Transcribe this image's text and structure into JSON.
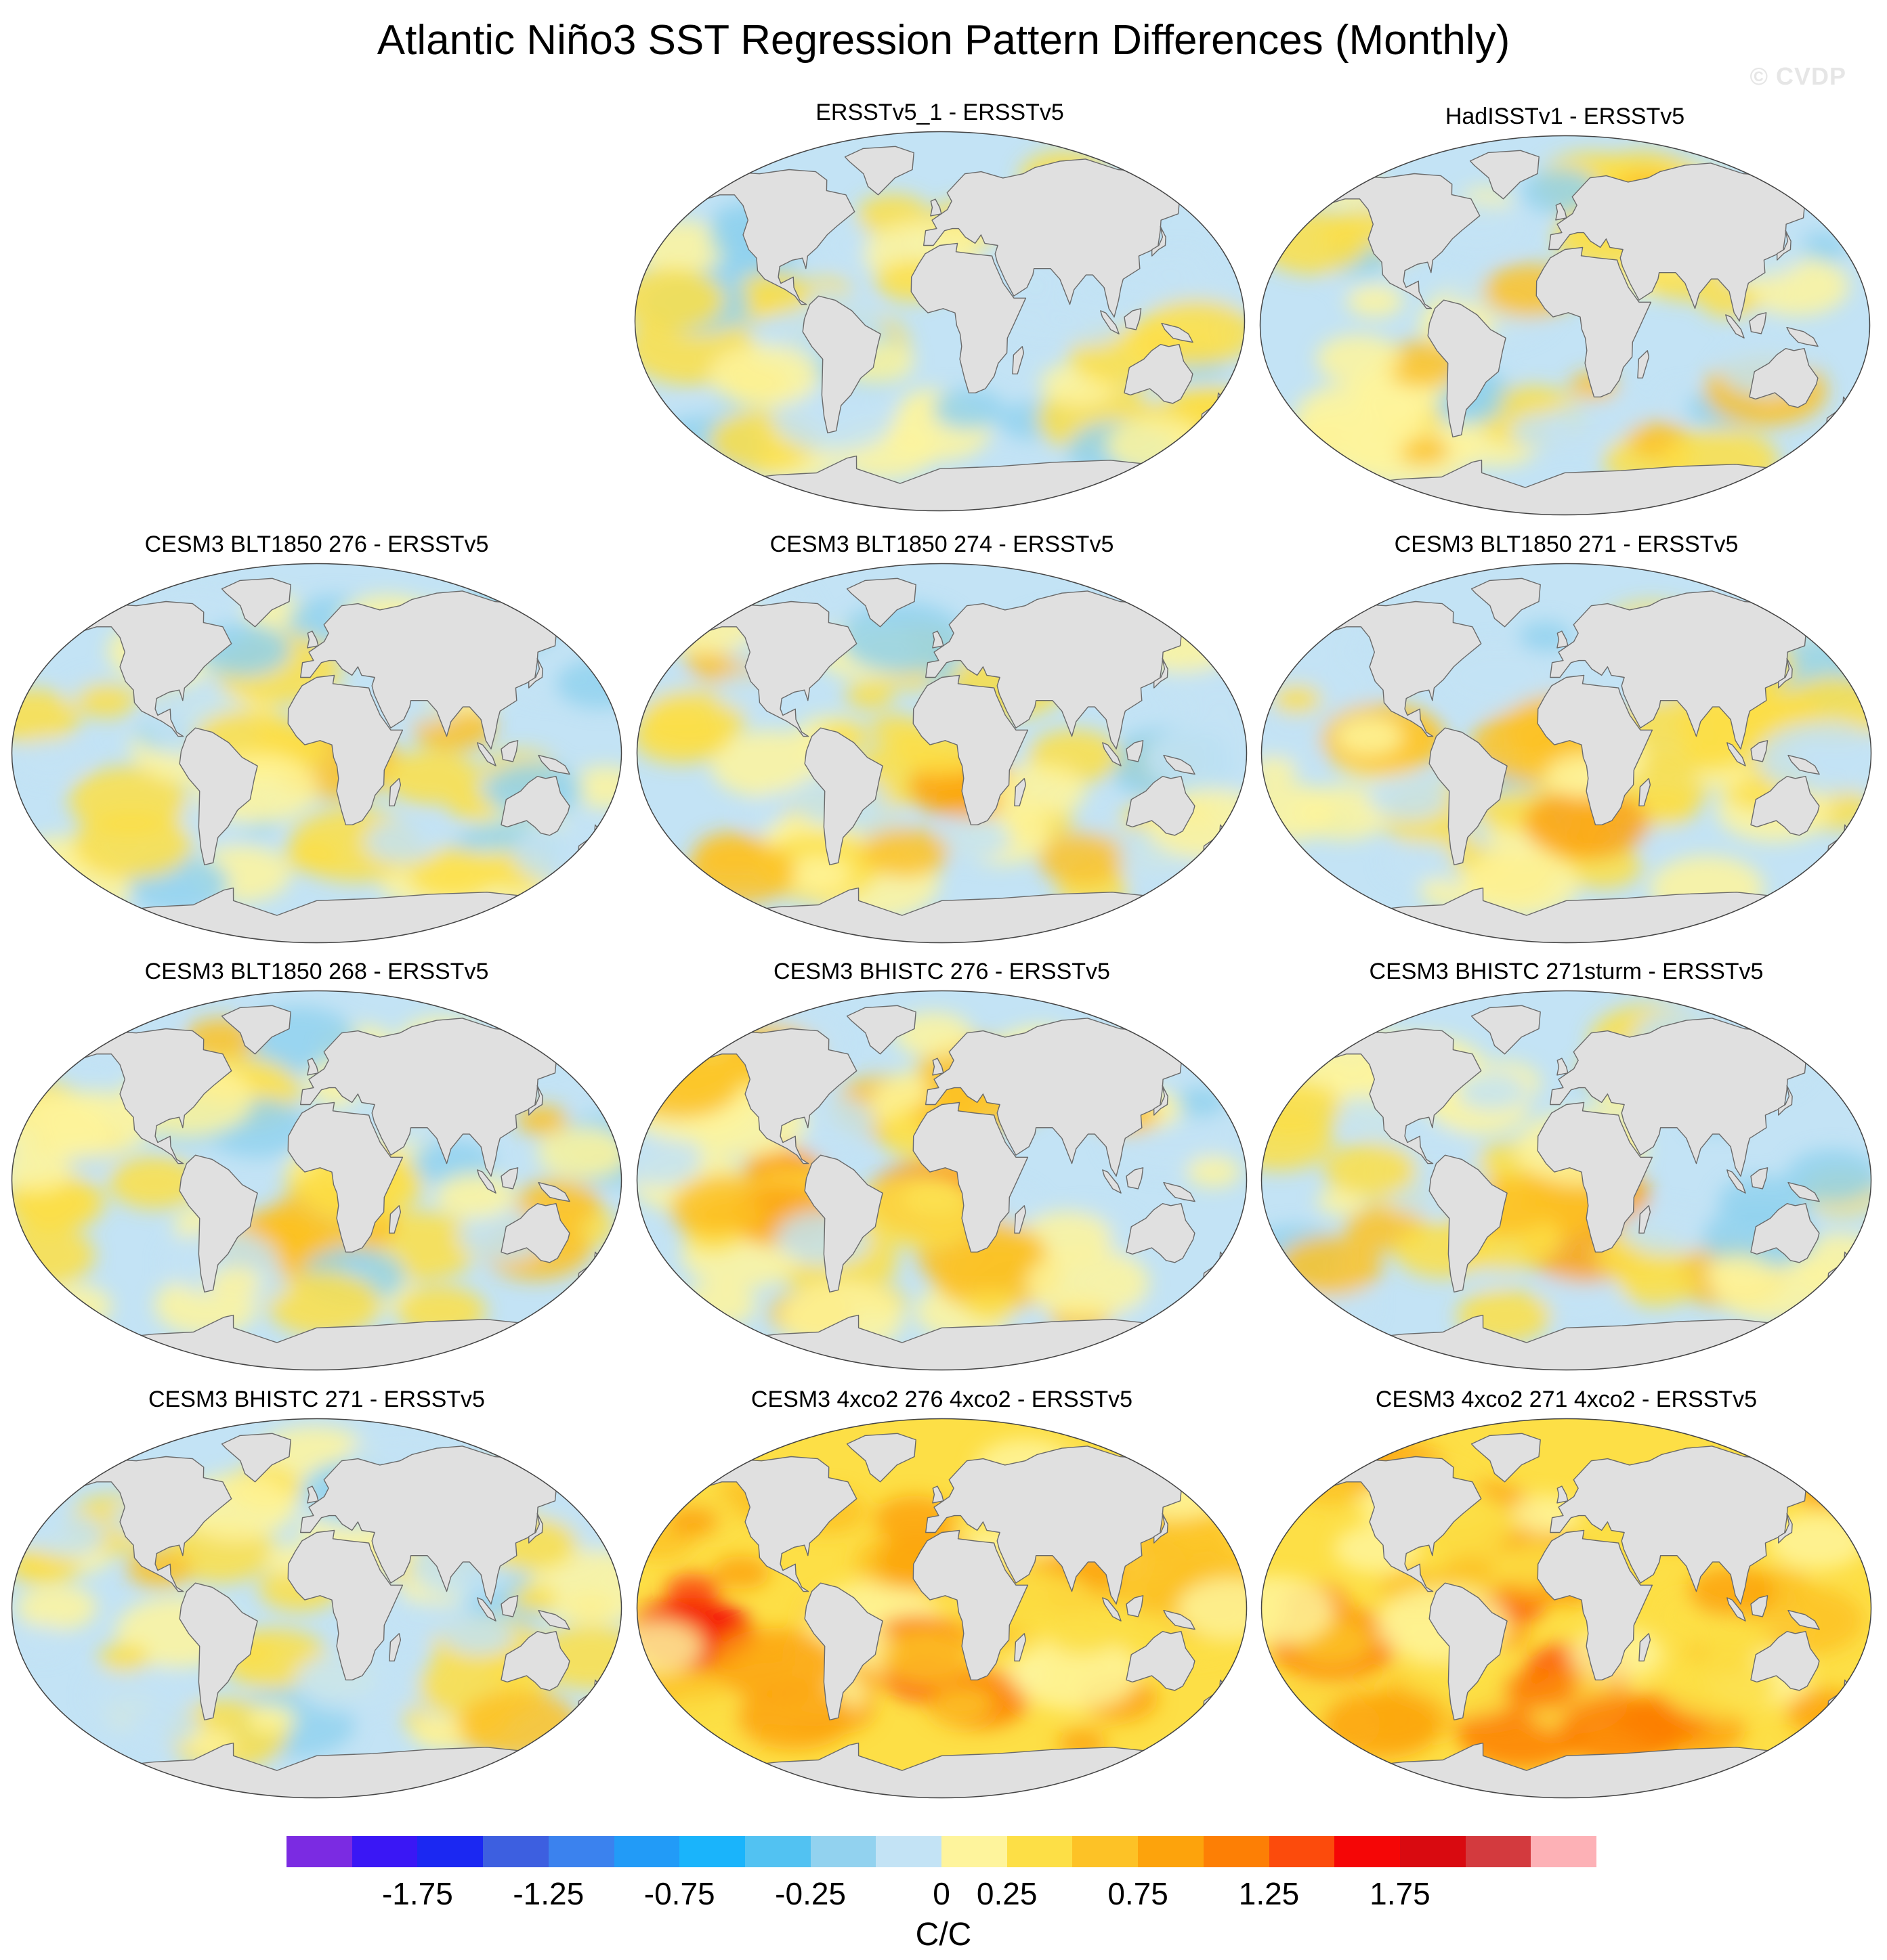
{
  "title": "Atlantic Niño3 SST Regression Pattern Differences (Monthly)",
  "credit": "© CVDP",
  "units": "C/C",
  "colorbar": {
    "colors": [
      "#7b2be2",
      "#3a17f5",
      "#1b28f2",
      "#3d5fe0",
      "#3b82ee",
      "#229bf7",
      "#1ab4fb",
      "#52c2f2",
      "#92d2ef",
      "#c3e3f5",
      "#fef49c",
      "#fddf46",
      "#fdc226",
      "#fda30c",
      "#fd7f05",
      "#fc4b0c",
      "#f50606",
      "#d90a10",
      "#d33a3e",
      "#fdb1b6"
    ],
    "labels": [
      "-1.75",
      "-1.25",
      "-0.75",
      "-0.25",
      "0",
      "0.25",
      "0.75",
      "1.25",
      "1.75"
    ]
  },
  "panels": [
    {
      "title": "ERSSTv5_1 - ERSSTv5",
      "warmth": 0.0
    },
    {
      "title": "HadISSTv1 - ERSSTv5",
      "warmth": 0.15
    },
    {
      "title": "CESM3 BLT1850 276 - ERSSTv5",
      "warmth": 0.1
    },
    {
      "title": "CESM3 BLT1850 274 - ERSSTv5",
      "warmth": 0.15
    },
    {
      "title": "CESM3 BLT1850 271 - ERSSTv5",
      "warmth": 0.1
    },
    {
      "title": "CESM3 BLT1850 268 - ERSSTv5",
      "warmth": 0.2
    },
    {
      "title": "CESM3 BHISTC 276 - ERSSTv5",
      "warmth": 0.35
    },
    {
      "title": "CESM3 BHISTC 271sturm - ERSSTv5",
      "warmth": 0.2
    },
    {
      "title": "CESM3 BHISTC 271 - ERSSTv5",
      "warmth": 0.2
    },
    {
      "title": "CESM3 4xco2 276 4xco2 - ERSSTv5",
      "warmth": 0.8
    },
    {
      "title": "CESM3 4xco2 271 4xco2 - ERSSTv5",
      "warmth": 0.75
    }
  ]
}
